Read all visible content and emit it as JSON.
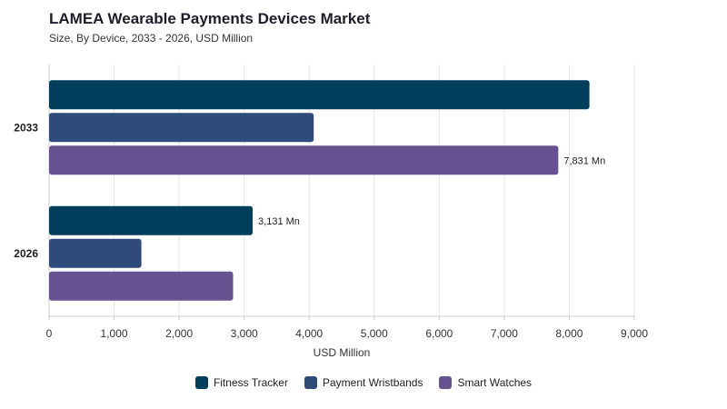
{
  "chart_data": {
    "type": "bar",
    "orientation": "horizontal",
    "title": "LAMEA Wearable Payments Devices Market",
    "subtitle": "Size, By Device, 2033 - 2026, USD Million",
    "xlabel": "USD Million",
    "ylabel": "",
    "xlim": [
      0,
      9000
    ],
    "xticks": [
      0,
      1000,
      2000,
      3000,
      4000,
      5000,
      6000,
      7000,
      8000,
      9000
    ],
    "xtick_labels": [
      "0",
      "1,000",
      "2,000",
      "3,000",
      "4,000",
      "5,000",
      "6,000",
      "7,000",
      "8,000",
      "9,000"
    ],
    "categories": [
      "2033",
      "2026"
    ],
    "series": [
      {
        "name": "Fitness Tracker",
        "color": "#003f5c",
        "values": [
          8310,
          3131
        ]
      },
      {
        "name": "Payment Wristbands",
        "color": "#2f4b7c",
        "values": [
          4070,
          1420
        ]
      },
      {
        "name": "Smart Watches",
        "color": "#665191",
        "values": [
          7831,
          2830
        ]
      }
    ],
    "data_labels": [
      {
        "series": 2,
        "category": 0,
        "text": "7,831 Mn"
      },
      {
        "series": 0,
        "category": 1,
        "text": "3,131 Mn"
      }
    ],
    "grid": true,
    "legend_position": "bottom"
  }
}
